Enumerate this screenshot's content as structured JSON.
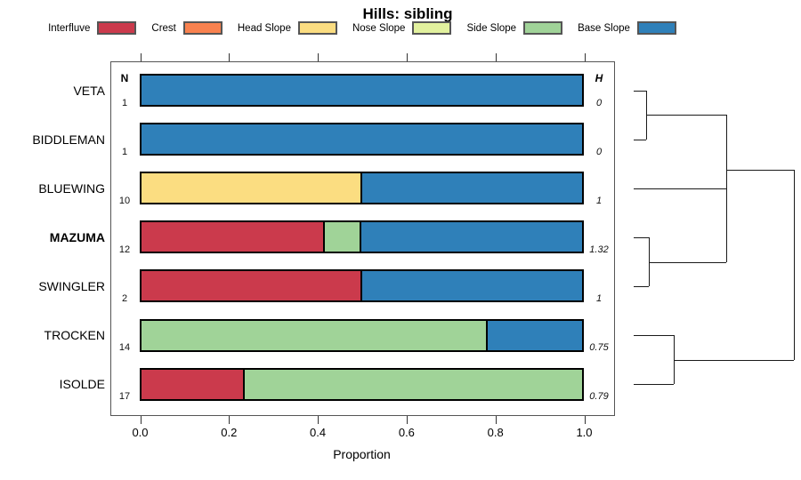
{
  "colors": {
    "Interfluve": "#CB3A4C",
    "Crest": "#F9824F",
    "Head Slope": "#FBDD81",
    "Nose Slope": "#E2F19E",
    "Side Slope": "#A0D398",
    "Base Slope": "#2F80B9"
  },
  "chart_data": {
    "type": "bar",
    "variant": "horizontal-stacked-proportion",
    "title": "Hills: sibling",
    "xlabel": "Proportion",
    "xlim": [
      0,
      1
    ],
    "x_ticks": [
      0,
      0.2,
      0.4,
      0.6,
      0.8,
      1.0
    ],
    "x_tick_labels": [
      "0.0",
      "0.2",
      "0.4",
      "0.6",
      "0.8",
      "1.0"
    ],
    "grid": false,
    "legend_position": "top",
    "categories": [
      "Interfluve",
      "Crest",
      "Head Slope",
      "Nose Slope",
      "Side Slope",
      "Base Slope"
    ],
    "column_headers": {
      "n": "N",
      "h": "H"
    },
    "rows": [
      {
        "label": "VETA",
        "bold": false,
        "n": "1",
        "h": "0",
        "segments": [
          [
            "Base Slope",
            1.0
          ]
        ]
      },
      {
        "label": "BIDDLEMAN",
        "bold": false,
        "n": "1",
        "h": "0",
        "segments": [
          [
            "Base Slope",
            1.0
          ]
        ]
      },
      {
        "label": "BLUEWING",
        "bold": false,
        "n": "10",
        "h": "1",
        "segments": [
          [
            "Head Slope",
            0.5
          ],
          [
            "Base Slope",
            0.5
          ]
        ]
      },
      {
        "label": "MAZUMA",
        "bold": true,
        "n": "12",
        "h": "1.32",
        "segments": [
          [
            "Interfluve",
            0.4167
          ],
          [
            "Side Slope",
            0.0833
          ],
          [
            "Base Slope",
            0.5
          ]
        ]
      },
      {
        "label": "SWINGLER",
        "bold": false,
        "n": "2",
        "h": "1",
        "segments": [
          [
            "Interfluve",
            0.5
          ],
          [
            "Base Slope",
            0.5
          ]
        ]
      },
      {
        "label": "TROCKEN",
        "bold": false,
        "n": "14",
        "h": "0.75",
        "segments": [
          [
            "Side Slope",
            0.7857
          ],
          [
            "Base Slope",
            0.2143
          ]
        ]
      },
      {
        "label": "ISOLDE",
        "bold": false,
        "n": "17",
        "h": "0.79",
        "segments": [
          [
            "Interfluve",
            0.2353
          ],
          [
            "Side Slope",
            0.7647
          ]
        ]
      }
    ],
    "dendrogram": {
      "topology_newick": "(((VETA,BIDDLEMAN),(BLUEWING,(MAZUMA,SWINGLER))),(TROCKEN,ISOLDE))",
      "segments": [
        {
          "x1": 712,
          "y1": 101.5,
          "x2": 726,
          "y2": 101.5
        },
        {
          "x1": 712,
          "y1": 156.5,
          "x2": 726,
          "y2": 156.5
        },
        {
          "x1": 726,
          "y1": 101.5,
          "x2": 726,
          "y2": 156.5
        },
        {
          "x1": 726,
          "y1": 129,
          "x2": 816,
          "y2": 129
        },
        {
          "x1": 712,
          "y1": 212,
          "x2": 816,
          "y2": 212
        },
        {
          "x1": 712,
          "y1": 267,
          "x2": 729,
          "y2": 267
        },
        {
          "x1": 712,
          "y1": 322,
          "x2": 729,
          "y2": 322
        },
        {
          "x1": 729,
          "y1": 267,
          "x2": 729,
          "y2": 322
        },
        {
          "x1": 729,
          "y1": 294.5,
          "x2": 816,
          "y2": 294.5
        },
        {
          "x1": 816,
          "y1": 129,
          "x2": 816,
          "y2": 294.5
        },
        {
          "x1": 816,
          "y1": 191,
          "x2": 892,
          "y2": 191
        },
        {
          "x1": 712,
          "y1": 377,
          "x2": 757,
          "y2": 377
        },
        {
          "x1": 712,
          "y1": 432,
          "x2": 757,
          "y2": 432
        },
        {
          "x1": 757,
          "y1": 377,
          "x2": 757,
          "y2": 432
        },
        {
          "x1": 757,
          "y1": 405,
          "x2": 892,
          "y2": 405
        },
        {
          "x1": 892,
          "y1": 191,
          "x2": 892,
          "y2": 405
        }
      ]
    }
  }
}
